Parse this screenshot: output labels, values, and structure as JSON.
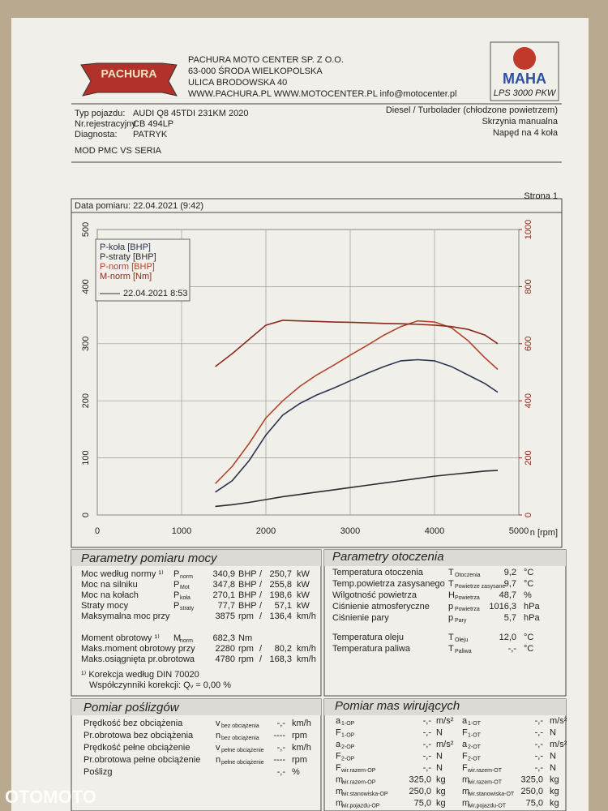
{
  "header": {
    "logo": "PACHURA",
    "company": [
      "PACHURA MOTO CENTER SP. Z O.O.",
      "63-000 ŚRODA WIELKOPOLSKA",
      "ULICA BRODOWSKA 40",
      "WWW.PACHURA.PL   WWW.MOTOCENTER.PL  info@motocenter.pl"
    ],
    "maha": "MAHA",
    "model": "LPS 3000 PKW"
  },
  "vehicle": {
    "rows": [
      {
        "label": "Typ pojazdu:",
        "value": "AUDI Q8 45TDI 231KM 2020"
      },
      {
        "label": "Nr.rejestracyjny",
        "value": "CB 494LP"
      },
      {
        "label": "Diagnosta:",
        "value": "PATRYK"
      }
    ],
    "info": [
      "Diesel / Turbolader (chłodzone powietrzem)",
      "Skrzynia manualna",
      "Napęd na 4 koła"
    ],
    "note": "MOD PMC VS SERIA"
  },
  "date": "Data pomiaru: 22.04.2021 (9:42)",
  "page": "Strona 1",
  "chart_data": {
    "type": "line",
    "x_label": "n [rpm]",
    "legend_title": "22.04.2021 8:53",
    "x": [
      1400,
      1600,
      1800,
      2000,
      2200,
      2400,
      2600,
      2800,
      3000,
      3200,
      3400,
      3600,
      3800,
      4000,
      4200,
      4400,
      4600,
      4750
    ],
    "xlim": [
      0,
      5000
    ],
    "xticks": [
      0,
      1000,
      2000,
      3000,
      4000,
      5000
    ],
    "ylim": [
      0,
      500
    ],
    "yticks": [
      0,
      100,
      200,
      300,
      400,
      500
    ],
    "y2lim": [
      0,
      1000
    ],
    "y2ticks": [
      0,
      200,
      400,
      600,
      800,
      1000
    ],
    "grid": true,
    "series": [
      {
        "name": "P-koła [BHP]",
        "color": "#2a3552",
        "values": [
          40,
          60,
          95,
          140,
          175,
          195,
          210,
          222,
          235,
          248,
          260,
          270,
          272,
          270,
          260,
          245,
          230,
          215
        ]
      },
      {
        "name": "P-straty [BHP]",
        "color": "#2b2b33",
        "values": [
          15,
          18,
          22,
          27,
          32,
          36,
          40,
          44,
          48,
          52,
          56,
          60,
          64,
          68,
          71,
          74,
          77,
          78
        ]
      },
      {
        "name": "P-norm [BHP]",
        "color": "#b0452a",
        "values": [
          55,
          85,
          125,
          170,
          200,
          225,
          245,
          262,
          280,
          297,
          315,
          330,
          340,
          338,
          328,
          305,
          275,
          255
        ]
      },
      {
        "name": "M-norm [Nm]",
        "color": "#8a2a1a",
        "axis": "y2",
        "values": [
          520,
          565,
          615,
          665,
          682,
          680,
          678,
          676,
          675,
          673,
          671,
          670,
          668,
          665,
          660,
          650,
          630,
          600
        ]
      }
    ]
  },
  "power": {
    "title": "Parametry pomiaru mocy",
    "rows": [
      {
        "label": "Moc według normy ¹⁾",
        "sym": "P",
        "sub": "norm",
        "v1": "340,9",
        "u1": "BHP",
        "sep": "/",
        "v2": "250,7",
        "u2": "kW"
      },
      {
        "label": "Moc na silniku",
        "sym": "P",
        "sub": "Mot",
        "v1": "347,8",
        "u1": "BHP",
        "sep": "/",
        "v2": "255,8",
        "u2": "kW"
      },
      {
        "label": "Moc na kołach",
        "sym": "P",
        "sub": "koła",
        "v1": "270,1",
        "u1": "BHP",
        "sep": "/",
        "v2": "198,6",
        "u2": "kW"
      },
      {
        "label": "Straty mocy",
        "sym": "P",
        "sub": "straty",
        "v1": "77,7",
        "u1": "BHP",
        "sep": "/",
        "v2": "57,1",
        "u2": "kW"
      },
      {
        "label": "Maksymalna moc przy",
        "v1": "3875",
        "u1": "rpm",
        "sep": "/",
        "v2": "136,4",
        "u2": "km/h"
      },
      {
        "label": "Moment obrotowy ¹⁾",
        "sym": "M",
        "sub": "norm",
        "v1": "682,3",
        "u1": "Nm"
      },
      {
        "label": "Maks.moment obrotowy przy",
        "v1": "2280",
        "u1": "rpm",
        "sep": "/",
        "v2": "80,2",
        "u2": "km/h"
      },
      {
        "label": "Maks.osiągnięta pr.obrotowa",
        "v1": "4780",
        "u1": "rpm",
        "sep": "/",
        "v2": "168,3",
        "u2": "km/h"
      }
    ],
    "notes": [
      "¹⁾ Korekcja według DIN 70020",
      "Współczynniki korekcji: Qᵥ =  0,00 %"
    ]
  },
  "environment": {
    "title": "Parametry otoczenia",
    "rows": [
      {
        "label": "Temperatura otoczenia",
        "sym": "T",
        "sub": "Otoczenia",
        "value": "9,2",
        "unit": "°C"
      },
      {
        "label": "Temp.powietrza zasysanego",
        "sym": "T",
        "sub": "Powietrze zasysane",
        "value": "9,7",
        "unit": "°C"
      },
      {
        "label": "Wilgotność powietrza",
        "sym": "H",
        "sub": "Powietrza",
        "value": "48,7",
        "unit": "%"
      },
      {
        "label": "Ciśnienie atmosferyczne",
        "sym": "p",
        "sub": "Powietrza",
        "value": "1016,3",
        "unit": "hPa"
      },
      {
        "label": "Ciśnienie pary",
        "sym": "p",
        "sub": "Pary",
        "value": "5,7",
        "unit": "hPa"
      },
      {
        "label": "Temperatura oleju",
        "sym": "T",
        "sub": "Oleju",
        "value": "12,0",
        "unit": "°C"
      },
      {
        "label": "Temperatura paliwa",
        "sym": "T",
        "sub": "Paliwa",
        "value": "-,-",
        "unit": "°C"
      }
    ]
  },
  "slip": {
    "title": "Pomiar poślizgów",
    "rows": [
      {
        "label": "Prędkość bez obciążenia",
        "sym": "v",
        "sub": "bez obciążenia",
        "value": "-,-",
        "unit": "km/h"
      },
      {
        "label": "Pr.obrotowa bez obciążenia",
        "sym": "n",
        "sub": "bez obciążenia",
        "value": "----",
        "unit": "rpm"
      },
      {
        "label": "Prędkość pełne obciążenie",
        "sym": "v",
        "sub": "pełne obciążenie",
        "value": "-,-",
        "unit": "km/h"
      },
      {
        "label": "Pr.obrotowa pełne obciążenie",
        "sym": "n",
        "sub": "pełne obciążenie",
        "value": "----",
        "unit": "rpm"
      },
      {
        "label": "Poślizg",
        "value": "-,-",
        "unit": "%"
      }
    ]
  },
  "masses": {
    "title": "Pomiar mas wirujących",
    "left": [
      {
        "sym": "a",
        "sub": "1-OP",
        "value": "-,-",
        "unit": "m/s²"
      },
      {
        "sym": "F",
        "sub": "1-OP",
        "value": "-,-",
        "unit": "N"
      },
      {
        "sym": "a",
        "sub": "2-OP",
        "value": "-,-",
        "unit": "m/s²"
      },
      {
        "sym": "F",
        "sub": "2-OP",
        "value": "-,-",
        "unit": "N"
      },
      {
        "sym": "F",
        "sub": "wir.razem-OP",
        "value": "-,-",
        "unit": "N"
      },
      {
        "sym": "m",
        "sub": "wir.razem-OP",
        "value": "325,0",
        "unit": "kg"
      },
      {
        "sym": "m",
        "sub": "wir.stanowiska-OP",
        "value": "250,0",
        "unit": "kg"
      },
      {
        "sym": "m",
        "sub": "wir.pojazdu-OP",
        "value": "75,0",
        "unit": "kg"
      }
    ],
    "right": [
      {
        "sym": "a",
        "sub": "1-OT",
        "value": "-,-",
        "unit": "m/s²"
      },
      {
        "sym": "F",
        "sub": "1-OT",
        "value": "-,-",
        "unit": "N"
      },
      {
        "sym": "a",
        "sub": "2-OT",
        "value": "-,-",
        "unit": "m/s²"
      },
      {
        "sym": "F",
        "sub": "2-OT",
        "value": "-,-",
        "unit": "N"
      },
      {
        "sym": "F",
        "sub": "wir.razem-OT",
        "value": "-,-",
        "unit": "N"
      },
      {
        "sym": "m",
        "sub": "wir.razem-OT",
        "value": "325,0",
        "unit": "kg"
      },
      {
        "sym": "m",
        "sub": "wir.stanowiska-OT",
        "value": "250,0",
        "unit": "kg"
      },
      {
        "sym": "m",
        "sub": "wir.pojazdu-OT",
        "value": "75,0",
        "unit": "kg"
      }
    ]
  },
  "watermark": "OTOMOTO"
}
